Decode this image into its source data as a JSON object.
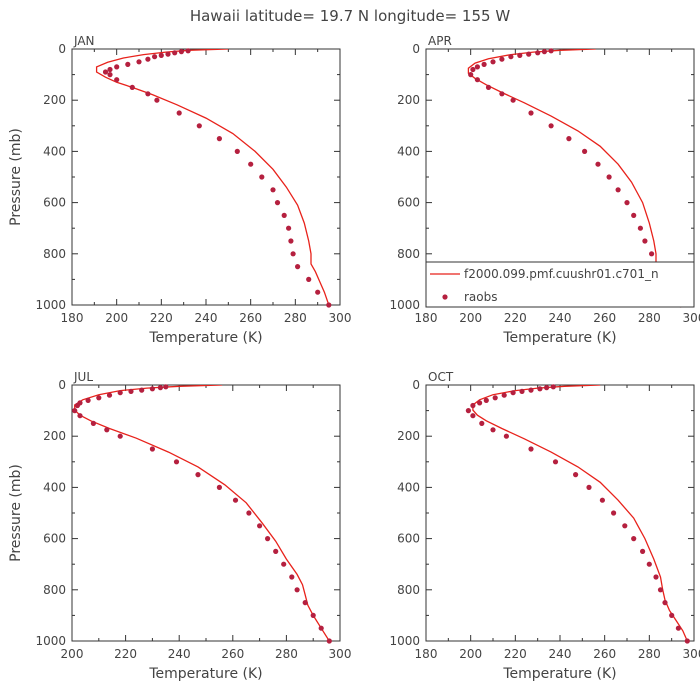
{
  "figure": {
    "title": "Hawaii  latitude= 19.7 N longitude= 155 W"
  },
  "legend": {
    "model_label": "f2000.099.pmf.cuushr01.c701_n",
    "obs_label": "raobs",
    "placement": "lower-right of APR panel"
  },
  "colors": {
    "model": "#e8221b",
    "obs": "#b5203f",
    "axis": "#333333",
    "text": "#444444"
  },
  "chart_data": [
    {
      "type": "line",
      "panel": "JAN",
      "title": "JAN",
      "xlabel": "Temperature (K)",
      "ylabel": "Pressure (mb)",
      "xlim": [
        180,
        300
      ],
      "ylim": [
        1000,
        0
      ],
      "xticks": [
        180,
        200,
        220,
        240,
        260,
        280,
        300
      ],
      "yticks": [
        0,
        200,
        400,
        600,
        800,
        1000
      ],
      "series": [
        {
          "name": "f2000.099.pmf.cuushr01.c701_n",
          "kind": "line",
          "points": [
            [
              250,
              0
            ],
            [
              232,
              5
            ],
            [
              222,
              12
            ],
            [
              212,
              22
            ],
            [
              203,
              35
            ],
            [
              196,
              52
            ],
            [
              191,
              70
            ],
            [
              191,
              90
            ],
            [
              195,
              110
            ],
            [
              200,
              130
            ],
            [
              207,
              150
            ],
            [
              216,
              178
            ],
            [
              227,
              218
            ],
            [
              240,
              270
            ],
            [
              252,
              330
            ],
            [
              262,
              400
            ],
            [
              270,
              470
            ],
            [
              276,
              540
            ],
            [
              281,
              610
            ],
            [
              284,
              680
            ],
            [
              286,
              750
            ],
            [
              287,
              800
            ],
            [
              287,
              840
            ],
            [
              289,
              870
            ],
            [
              291,
              910
            ],
            [
              293,
              950
            ],
            [
              295,
              1000
            ]
          ]
        },
        {
          "name": "raobs",
          "kind": "scatter",
          "points": [
            [
              232,
              7
            ],
            [
              229,
              10
            ],
            [
              226,
              15
            ],
            [
              223,
              20
            ],
            [
              220,
              25
            ],
            [
              217,
              30
            ],
            [
              214,
              40
            ],
            [
              210,
              50
            ],
            [
              205,
              60
            ],
            [
              200,
              70
            ],
            [
              197,
              80
            ],
            [
              195,
              90
            ],
            [
              197,
              100
            ],
            [
              200,
              120
            ],
            [
              207,
              150
            ],
            [
              214,
              175
            ],
            [
              218,
              200
            ],
            [
              228,
              250
            ],
            [
              237,
              300
            ],
            [
              246,
              350
            ],
            [
              254,
              400
            ],
            [
              260,
              450
            ],
            [
              265,
              500
            ],
            [
              270,
              550
            ],
            [
              272,
              600
            ],
            [
              275,
              650
            ],
            [
              277,
              700
            ],
            [
              278,
              750
            ],
            [
              279,
              800
            ],
            [
              281,
              850
            ],
            [
              286,
              900
            ],
            [
              290,
              950
            ],
            [
              295,
              1000
            ]
          ]
        }
      ]
    },
    {
      "type": "line",
      "panel": "APR",
      "title": "APR",
      "xlabel": "Temperature (K)",
      "ylabel": "",
      "xlim": [
        180,
        300
      ],
      "ylim": [
        1000,
        0
      ],
      "xticks": [
        180,
        200,
        220,
        240,
        260,
        280,
        300
      ],
      "yticks": [
        0,
        200,
        400,
        600,
        800,
        1000
      ],
      "series": [
        {
          "name": "f2000.099.pmf.cuushr01.c701_n",
          "kind": "line",
          "points": [
            [
              256,
              0
            ],
            [
              240,
              5
            ],
            [
              228,
              12
            ],
            [
              218,
              22
            ],
            [
              208,
              38
            ],
            [
              202,
              55
            ],
            [
              199,
              75
            ],
            [
              199,
              95
            ],
            [
              202,
              115
            ],
            [
              207,
              140
            ],
            [
              214,
              170
            ],
            [
              224,
              210
            ],
            [
              236,
              262
            ],
            [
              248,
              320
            ],
            [
              258,
              380
            ],
            [
              266,
              450
            ],
            [
              272,
              520
            ],
            [
              277,
              600
            ],
            [
              280,
              680
            ],
            [
              282,
              750
            ],
            [
              283,
              800
            ],
            [
              283,
              840
            ],
            [
              285,
              870
            ],
            [
              288,
              910
            ],
            [
              291,
              950
            ],
            [
              294,
              1000
            ]
          ]
        },
        {
          "name": "raobs",
          "kind": "scatter",
          "points": [
            [
              236,
              7
            ],
            [
              233,
              10
            ],
            [
              230,
              15
            ],
            [
              226,
              20
            ],
            [
              222,
              25
            ],
            [
              218,
              30
            ],
            [
              214,
              40
            ],
            [
              210,
              50
            ],
            [
              206,
              60
            ],
            [
              203,
              70
            ],
            [
              201,
              80
            ],
            [
              200,
              100
            ],
            [
              203,
              120
            ],
            [
              208,
              150
            ],
            [
              214,
              175
            ],
            [
              219,
              200
            ],
            [
              227,
              250
            ],
            [
              236,
              300
            ],
            [
              244,
              350
            ],
            [
              251,
              400
            ],
            [
              257,
              450
            ],
            [
              262,
              500
            ],
            [
              266,
              550
            ],
            [
              270,
              600
            ],
            [
              273,
              650
            ],
            [
              276,
              700
            ],
            [
              278,
              750
            ],
            [
              281,
              800
            ],
            [
              284,
              850
            ],
            [
              287,
              900
            ],
            [
              290,
              950
            ],
            [
              294,
              1000
            ]
          ]
        }
      ]
    },
    {
      "type": "line",
      "panel": "JUL",
      "title": "JUL",
      "xlabel": "Temperature (K)",
      "ylabel": "Pressure (mb)",
      "xlim": [
        200,
        300
      ],
      "ylim": [
        1000,
        0
      ],
      "xticks": [
        200,
        220,
        240,
        260,
        280,
        300
      ],
      "yticks": [
        0,
        200,
        400,
        600,
        800,
        1000
      ],
      "series": [
        {
          "name": "f2000.099.pmf.cuushr01.c701_n",
          "kind": "line",
          "points": [
            [
              256,
              0
            ],
            [
              240,
              5
            ],
            [
              228,
              12
            ],
            [
              218,
              22
            ],
            [
              210,
              38
            ],
            [
              204,
              58
            ],
            [
              201,
              78
            ],
            [
              201,
              98
            ],
            [
              203,
              118
            ],
            [
              207,
              140
            ],
            [
              214,
              170
            ],
            [
              224,
              208
            ],
            [
              236,
              262
            ],
            [
              247,
              320
            ],
            [
              257,
              390
            ],
            [
              265,
              460
            ],
            [
              271,
              540
            ],
            [
              276,
              610
            ],
            [
              280,
              680
            ],
            [
              284,
              740
            ],
            [
              286,
              780
            ],
            [
              287,
              820
            ],
            [
              288,
              860
            ],
            [
              290,
              900
            ],
            [
              293,
              950
            ],
            [
              296,
              1000
            ]
          ]
        },
        {
          "name": "raobs",
          "kind": "scatter",
          "points": [
            [
              235,
              7
            ],
            [
              233,
              10
            ],
            [
              230,
              15
            ],
            [
              226,
              20
            ],
            [
              222,
              25
            ],
            [
              218,
              30
            ],
            [
              214,
              40
            ],
            [
              210,
              50
            ],
            [
              206,
              60
            ],
            [
              203,
              70
            ],
            [
              202,
              80
            ],
            [
              201,
              100
            ],
            [
              203,
              120
            ],
            [
              208,
              150
            ],
            [
              213,
              175
            ],
            [
              218,
              200
            ],
            [
              230,
              250
            ],
            [
              239,
              300
            ],
            [
              247,
              350
            ],
            [
              255,
              400
            ],
            [
              261,
              450
            ],
            [
              266,
              500
            ],
            [
              270,
              550
            ],
            [
              273,
              600
            ],
            [
              276,
              650
            ],
            [
              279,
              700
            ],
            [
              282,
              750
            ],
            [
              284,
              800
            ],
            [
              287,
              850
            ],
            [
              290,
              900
            ],
            [
              293,
              950
            ],
            [
              296,
              1000
            ]
          ]
        }
      ]
    },
    {
      "type": "line",
      "panel": "OCT",
      "title": "OCT",
      "xlabel": "Temperature (K)",
      "ylabel": "",
      "xlim": [
        180,
        300
      ],
      "ylim": [
        1000,
        0
      ],
      "xticks": [
        180,
        200,
        220,
        240,
        260,
        280,
        300
      ],
      "yticks": [
        0,
        200,
        400,
        600,
        800,
        1000
      ],
      "series": [
        {
          "name": "f2000.099.pmf.cuushr01.c701_n",
          "kind": "line",
          "points": [
            [
              258,
              0
            ],
            [
              242,
              5
            ],
            [
              230,
              12
            ],
            [
              220,
              22
            ],
            [
              210,
              38
            ],
            [
              204,
              58
            ],
            [
              201,
              78
            ],
            [
              201,
              98
            ],
            [
              203,
              118
            ],
            [
              207,
              140
            ],
            [
              214,
              170
            ],
            [
              224,
              210
            ],
            [
              236,
              262
            ],
            [
              248,
              320
            ],
            [
              258,
              380
            ],
            [
              266,
              450
            ],
            [
              273,
              520
            ],
            [
              278,
              600
            ],
            [
              282,
              680
            ],
            [
              285,
              750
            ],
            [
              286,
              800
            ],
            [
              287,
              840
            ],
            [
              289,
              880
            ],
            [
              292,
              920
            ],
            [
              295,
              960
            ],
            [
              297,
              1000
            ]
          ]
        },
        {
          "name": "raobs",
          "kind": "scatter",
          "points": [
            [
              237,
              7
            ],
            [
              234,
              10
            ],
            [
              231,
              15
            ],
            [
              227,
              20
            ],
            [
              223,
              25
            ],
            [
              219,
              30
            ],
            [
              215,
              40
            ],
            [
              211,
              50
            ],
            [
              207,
              60
            ],
            [
              204,
              70
            ],
            [
              201,
              80
            ],
            [
              199,
              100
            ],
            [
              201,
              120
            ],
            [
              205,
              150
            ],
            [
              210,
              175
            ],
            [
              216,
              200
            ],
            [
              227,
              250
            ],
            [
              238,
              300
            ],
            [
              247,
              350
            ],
            [
              253,
              400
            ],
            [
              259,
              450
            ],
            [
              264,
              500
            ],
            [
              269,
              550
            ],
            [
              273,
              600
            ],
            [
              277,
              650
            ],
            [
              280,
              700
            ],
            [
              283,
              750
            ],
            [
              285,
              800
            ],
            [
              287,
              850
            ],
            [
              290,
              900
            ],
            [
              293,
              950
            ],
            [
              297,
              1000
            ]
          ]
        }
      ]
    }
  ]
}
